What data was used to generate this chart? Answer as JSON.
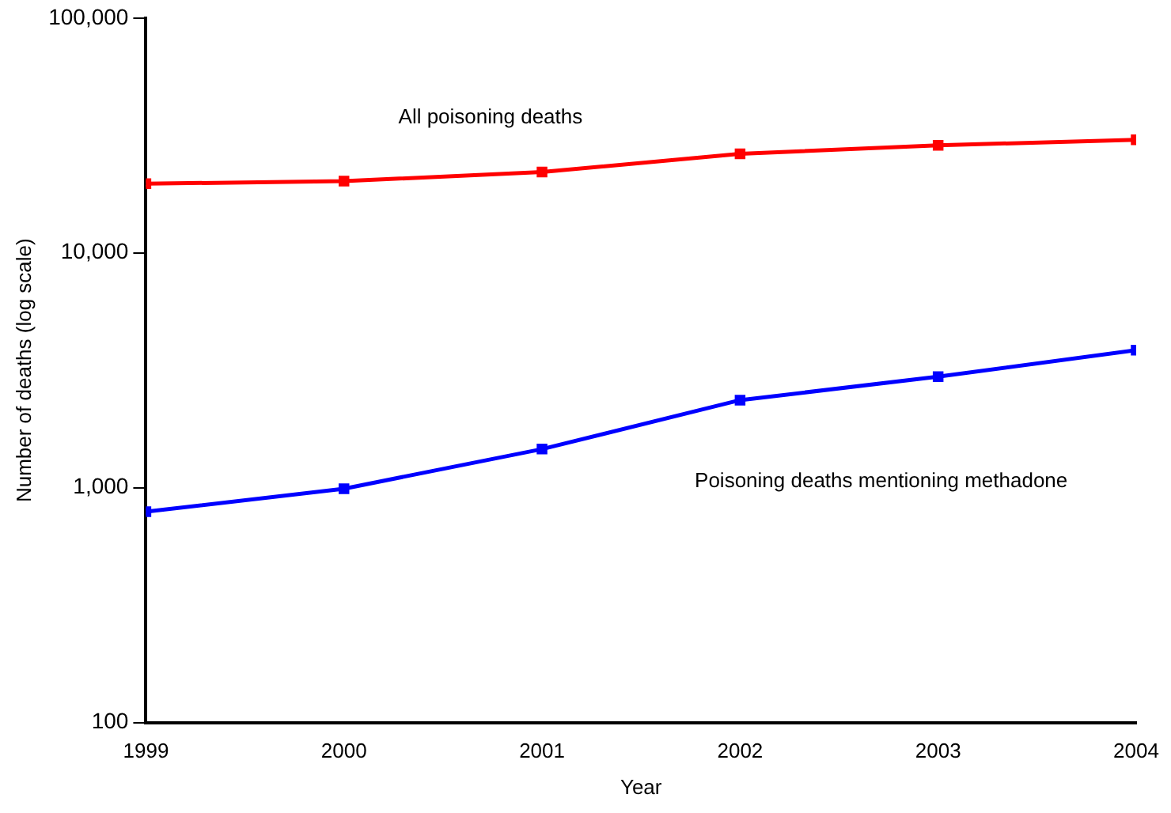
{
  "chart_data": {
    "type": "line",
    "xlabel": "Year",
    "ylabel": "Number of deaths (log scale)",
    "x": [
      1999,
      2000,
      2001,
      2002,
      2003,
      2004
    ],
    "series": [
      {
        "name": "All poisoning deaths",
        "color": "#ff0000",
        "values": [
          19700,
          20200,
          22100,
          26400,
          28700,
          30300
        ]
      },
      {
        "name": "Poisoning deaths mentioning methadone",
        "color": "#0000ff",
        "values": [
          790,
          990,
          1460,
          2360,
          2970,
          3850
        ]
      }
    ],
    "log": "y",
    "xlim": [
      1999,
      2004
    ],
    "xticks": [
      1999,
      2000,
      2001,
      2002,
      2003,
      2004
    ],
    "ylim": [
      100,
      100000
    ],
    "yticks": [
      {
        "value": 100,
        "label": "100"
      },
      {
        "value": 1000,
        "label": "1,000"
      },
      {
        "value": 10000,
        "label": "10,000"
      },
      {
        "value": 100000,
        "label": "100,000"
      }
    ],
    "grid": false,
    "legend": false,
    "marker": "square",
    "line_style": "solid"
  }
}
